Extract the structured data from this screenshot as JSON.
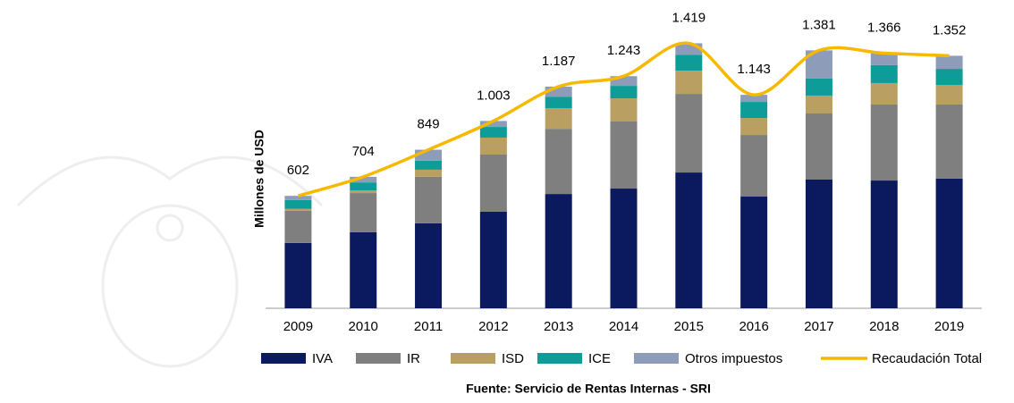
{
  "chart_data": {
    "type": "bar",
    "y_axis_label": "Millones de USD",
    "source": "Fuente: Servicio de Rentas Internas   - SRI",
    "categories": [
      "2009",
      "2010",
      "2011",
      "2012",
      "2013",
      "2014",
      "2015",
      "2016",
      "2017",
      "2018",
      "2019"
    ],
    "stacked": true,
    "series": [
      {
        "name": "IVA",
        "color": "#0b1a5e",
        "values": [
          350,
          407,
          455,
          517,
          612,
          641,
          727,
          598,
          689,
          684,
          694
        ]
      },
      {
        "name": "IR",
        "color": "#7f7f7f",
        "values": [
          172,
          210,
          249,
          306,
          349,
          359,
          421,
          330,
          354,
          407,
          397
        ]
      },
      {
        "name": "ISD",
        "color": "#b9a062",
        "values": [
          10,
          14,
          38,
          91,
          110,
          124,
          124,
          91,
          96,
          115,
          105
        ]
      },
      {
        "name": "ICE",
        "color": "#0e9c98",
        "values": [
          48,
          43,
          48,
          57,
          62,
          67,
          86,
          86,
          91,
          96,
          86
        ]
      },
      {
        "name": "Otros impuestos",
        "color": "#8c9cb9",
        "values": [
          22,
          30,
          59,
          32,
          54,
          52,
          61,
          38,
          151,
          64,
          70
        ]
      },
      {
        "name": "Recaudación Total",
        "type": "line",
        "color": "#f7b900",
        "values": [
          602,
          704,
          849,
          1003,
          1187,
          1243,
          1419,
          1143,
          1381,
          1366,
          1352
        ],
        "value_labels": [
          "602",
          "704",
          "849",
          "1.003",
          "1.187",
          "1.243",
          "1.419",
          "1.143",
          "1.381",
          "1.366",
          "1.352"
        ]
      }
    ]
  }
}
